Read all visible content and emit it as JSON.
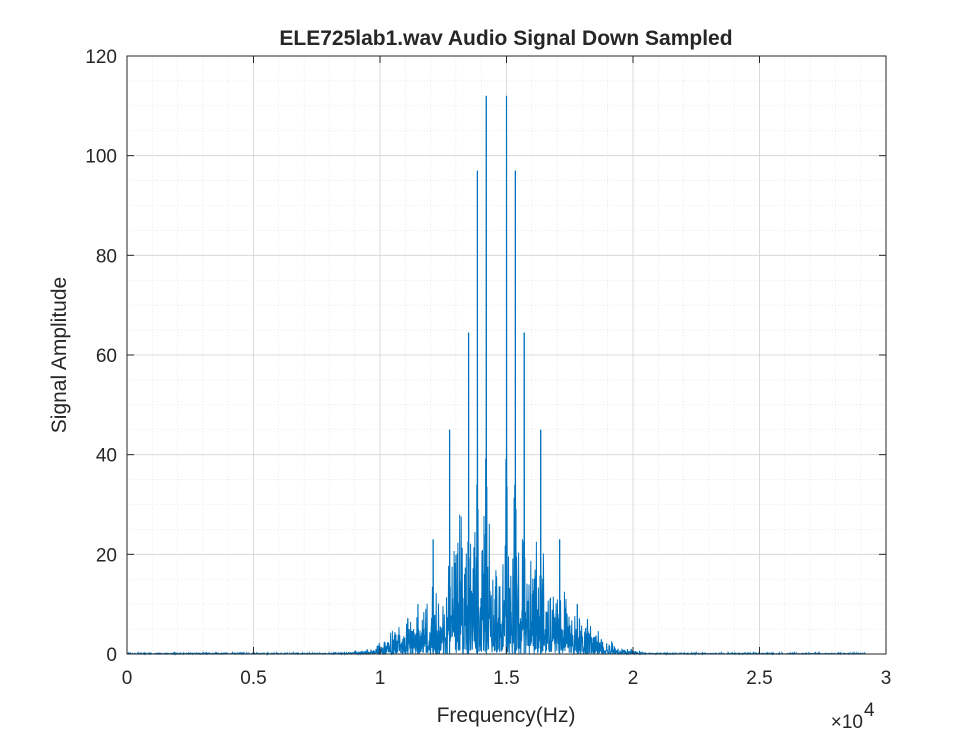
{
  "chart_data": {
    "type": "line",
    "title": "ELE725lab1.wav Audio Signal Down Sampled",
    "xlabel": "Frequency(Hz)",
    "ylabel": "Signal Amplitude",
    "x_exponent_label": "×10",
    "x_exponent_power": "4",
    "xlim": [
      0,
      30000
    ],
    "ylim": [
      0,
      120
    ],
    "x_ticks": [
      0,
      5000,
      10000,
      15000,
      20000,
      25000,
      30000
    ],
    "x_tick_labels": [
      "0",
      "0.5",
      "1",
      "1.5",
      "2",
      "2.5",
      "3"
    ],
    "y_ticks": [
      0,
      20,
      40,
      60,
      80,
      100,
      120
    ],
    "y_tick_labels": [
      "0",
      "20",
      "40",
      "60",
      "80",
      "100",
      "120"
    ],
    "grid": true,
    "minor_grid": true,
    "series": [
      {
        "color": "#0072BD",
        "peaks": [
          {
            "x": 14200,
            "y": 112
          },
          {
            "x": 15000,
            "y": 112
          },
          {
            "x": 13850,
            "y": 97
          },
          {
            "x": 15350,
            "y": 97
          },
          {
            "x": 13500,
            "y": 64.5
          },
          {
            "x": 15700,
            "y": 64.5
          },
          {
            "x": 12750,
            "y": 45
          },
          {
            "x": 16350,
            "y": 45
          },
          {
            "x": 12100,
            "y": 23
          },
          {
            "x": 17100,
            "y": 23
          },
          {
            "x": 11500,
            "y": 10
          },
          {
            "x": 17800,
            "y": 10
          },
          {
            "x": 11100,
            "y": 7
          },
          {
            "x": 18200,
            "y": 7
          }
        ]
      }
    ]
  }
}
